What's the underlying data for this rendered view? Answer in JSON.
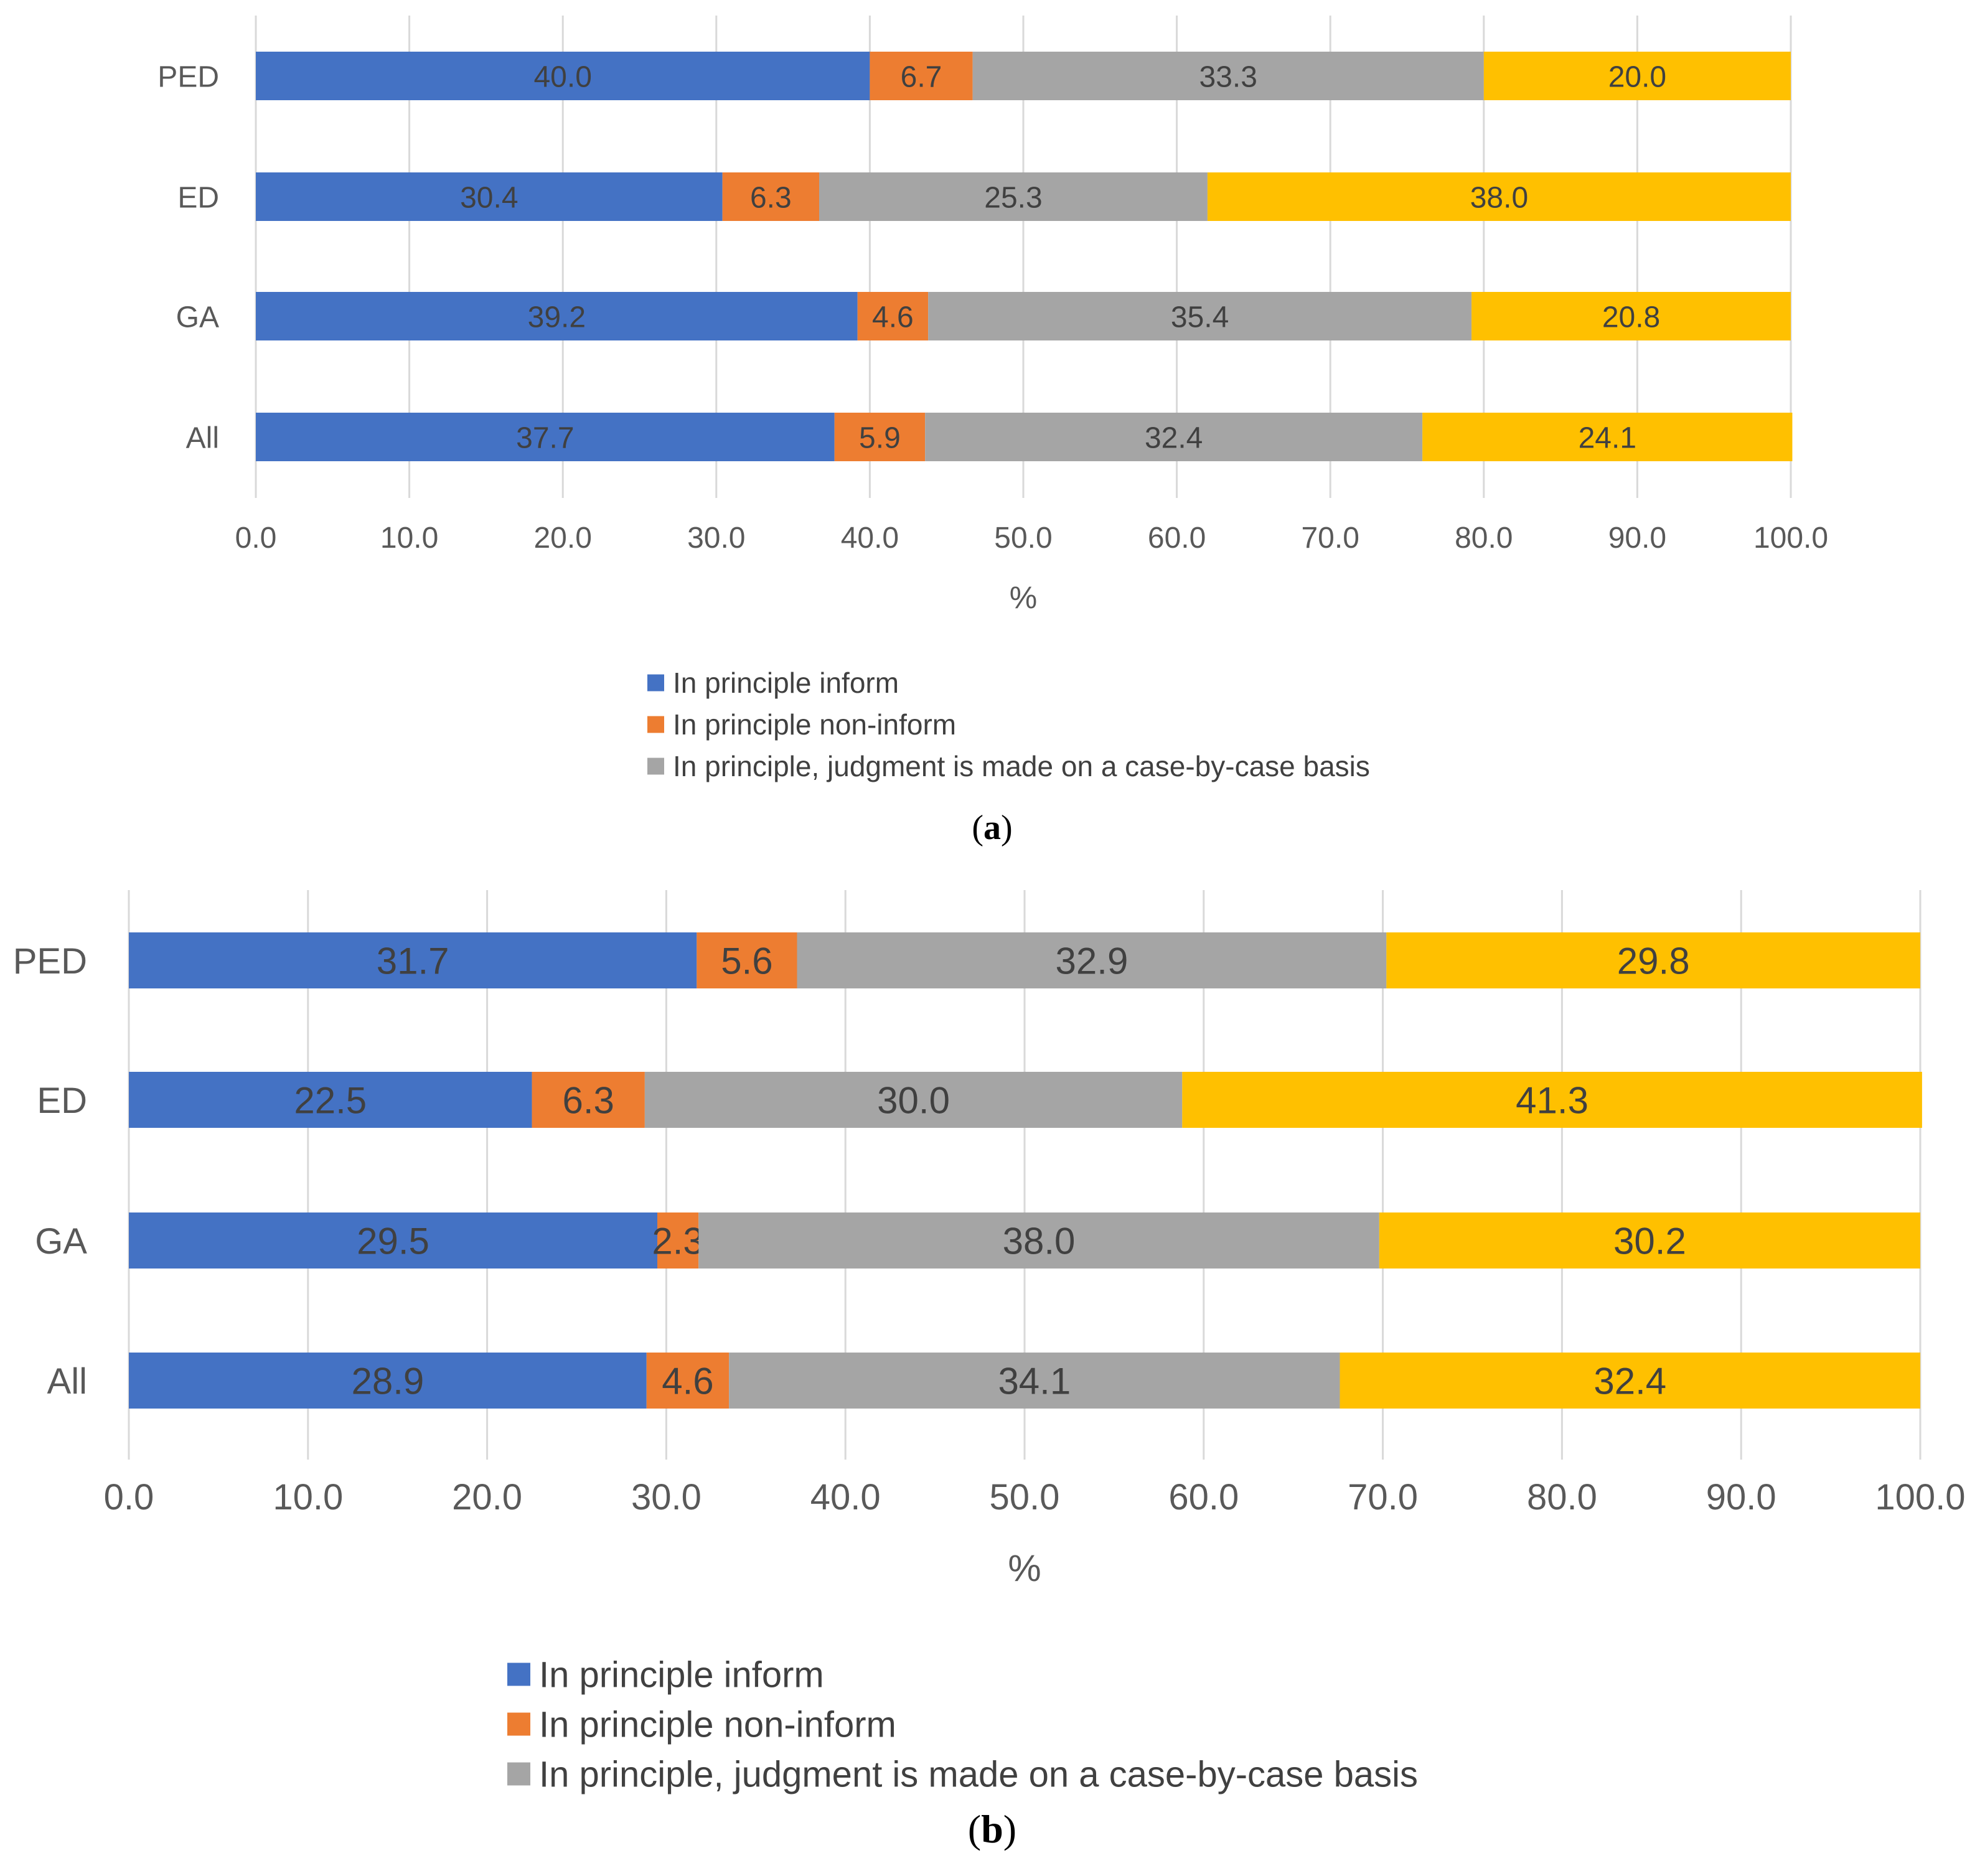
{
  "figure": {
    "colors": {
      "inform": "#4472C4",
      "non_inform": "#ED7D31",
      "case_by_case": "#A5A5A5",
      "fourth": "#FFC000",
      "gridline": "#D9D9D9",
      "text": "#595959"
    }
  },
  "chart_data": [
    {
      "type": "bar",
      "orientation": "horizontal",
      "stacked": true,
      "panel": "a",
      "caption_label": "a",
      "categories": [
        "PED",
        "ED",
        "GA",
        "All"
      ],
      "series": [
        {
          "name": "In principle inform",
          "values": [
            40.0,
            30.4,
            39.2,
            37.7
          ],
          "labels": [
            "40.0",
            "30.4",
            "39.2",
            "37.7"
          ]
        },
        {
          "name": "In principle non-inform",
          "values": [
            6.7,
            6.3,
            4.6,
            5.9
          ],
          "labels": [
            "6.7",
            "6.3",
            "4.6",
            "5.9"
          ]
        },
        {
          "name": "In principle, judgment is made on a case-by-case basis",
          "values": [
            33.3,
            25.3,
            35.4,
            32.4
          ],
          "labels": [
            "33.3",
            "25.3",
            "35.4",
            "32.4"
          ]
        },
        {
          "name": "",
          "values": [
            20.0,
            38.0,
            20.8,
            24.1
          ],
          "labels": [
            "20.0",
            "38.0",
            "20.8",
            "24.1"
          ]
        }
      ],
      "xlabel": "%",
      "xlim": [
        0,
        100
      ],
      "xticks": [
        "0.0",
        "10.0",
        "20.0",
        "30.0",
        "40.0",
        "50.0",
        "60.0",
        "70.0",
        "80.0",
        "90.0",
        "100.0"
      ],
      "grid": true,
      "legend": [
        "In principle inform",
        "In principle non-inform",
        "In principle, judgment is made on a case-by-case basis"
      ],
      "legend_position": "bottom"
    },
    {
      "type": "bar",
      "orientation": "horizontal",
      "stacked": true,
      "panel": "b",
      "caption_label": "b",
      "categories": [
        "PED",
        "ED",
        "GA",
        "All"
      ],
      "series": [
        {
          "name": "In principle inform",
          "values": [
            31.7,
            22.5,
            29.5,
            28.9
          ],
          "labels": [
            "31.7",
            "22.5",
            "29.5",
            "28.9"
          ]
        },
        {
          "name": "In principle non-inform",
          "values": [
            5.6,
            6.3,
            2.3,
            4.6
          ],
          "labels": [
            "5.6",
            "6.3",
            "2.3",
            "4.6"
          ]
        },
        {
          "name": "In principle, judgment is made on a case-by-case basis",
          "values": [
            32.9,
            30.0,
            38.0,
            34.1
          ],
          "labels": [
            "32.9",
            "30.0",
            "38.0",
            "34.1"
          ]
        },
        {
          "name": "",
          "values": [
            29.8,
            41.3,
            30.2,
            32.4
          ],
          "labels": [
            "29.8",
            "41.3",
            "30.2",
            "32.4"
          ]
        }
      ],
      "xlabel": "%",
      "xlim": [
        0,
        100
      ],
      "xticks": [
        "0.0",
        "10.0",
        "20.0",
        "30.0",
        "40.0",
        "50.0",
        "60.0",
        "70.0",
        "80.0",
        "90.0",
        "100.0"
      ],
      "grid": true,
      "legend": [
        "In principle inform",
        "In principle non-inform",
        "In principle, judgment is made on a case-by-case basis"
      ],
      "legend_position": "bottom"
    }
  ]
}
